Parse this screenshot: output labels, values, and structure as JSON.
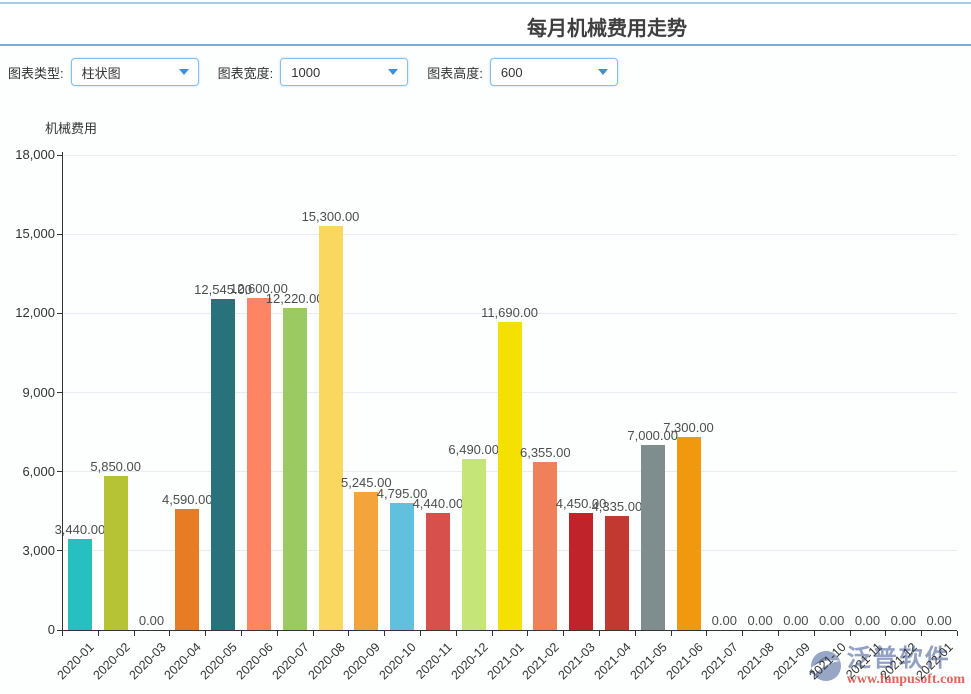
{
  "header": {
    "title": "每月机械费用走势"
  },
  "controls": {
    "type_label": "图表类型:",
    "type_value": "柱状图",
    "width_label": "图表宽度:",
    "width_value": "1000",
    "height_label": "图表高度:",
    "height_value": "600"
  },
  "watermark": {
    "brand": "泛普软件",
    "url": "www.fanpusoft.com",
    "brand_color": "#8495bb",
    "url_color": "#d85246"
  },
  "theme": {
    "accent_blue": "#3d8fd8",
    "select_border": "#85c0ec",
    "header_rule": "#74aede",
    "top_line": "#a9cde9",
    "axis_color": "#333333",
    "grid_color": "#e7ebf3",
    "bar_label_color": "#4d4d4d"
  },
  "chart_data": {
    "type": "bar",
    "title": "每月机械费用走势",
    "ylabel": "机械费用",
    "xlabel": "",
    "legend": "none",
    "grid": true,
    "ylim": [
      0,
      18000
    ],
    "ytick_values": [
      0,
      3000,
      6000,
      9000,
      12000,
      15000,
      18000
    ],
    "ytick_labels": [
      "0",
      "3,000",
      "6,000",
      "9,000",
      "12,000",
      "15,000",
      "18,000"
    ],
    "categories": [
      "2020-01",
      "2020-02",
      "2020-03",
      "2020-04",
      "2020-05",
      "2020-06",
      "2020-07",
      "2020-08",
      "2020-09",
      "2020-10",
      "2020-11",
      "2020-12",
      "2021-01",
      "2021-02",
      "2021-03",
      "2021-04",
      "2021-05",
      "2021-06",
      "2021-07",
      "2021-08",
      "2021-09",
      "2021-10",
      "2021-11",
      "2021-12",
      "2022-01"
    ],
    "values": [
      3440,
      5850,
      0,
      4590,
      12545,
      12600,
      12220,
      15300,
      5245,
      4795,
      4440,
      6490,
      11690,
      6355,
      4450,
      4335,
      7000,
      7300,
      0,
      0,
      0,
      0,
      0,
      0,
      0
    ],
    "value_labels": [
      "3,440.00",
      "5,850.00",
      "0.00",
      "4,590.00",
      "12,545.00",
      "12,600.00",
      "12,220.00",
      "15,300.00",
      "5,245.00",
      "4,795.00",
      "4,440.00",
      "6,490.00",
      "11,690.00",
      "6,355.00",
      "4,450.00",
      "4,335.00",
      "7,000.00",
      "7,300.00",
      "0.00",
      "0.00",
      "0.00",
      "0.00",
      "0.00",
      "0.00",
      "0.00"
    ],
    "colors": [
      "#26c0c0",
      "#b5c334",
      null,
      "#e87c25",
      "#27727b",
      "#fe8463",
      "#9bca63",
      "#fad860",
      "#f3a43b",
      "#60c0dd",
      "#d7504b",
      "#c6e579",
      "#f4e001",
      "#f0805a",
      "#c1232b",
      "#c23931",
      "#7f8d8f",
      "#f0990f",
      null,
      null,
      null,
      null,
      null,
      null,
      null
    ]
  }
}
